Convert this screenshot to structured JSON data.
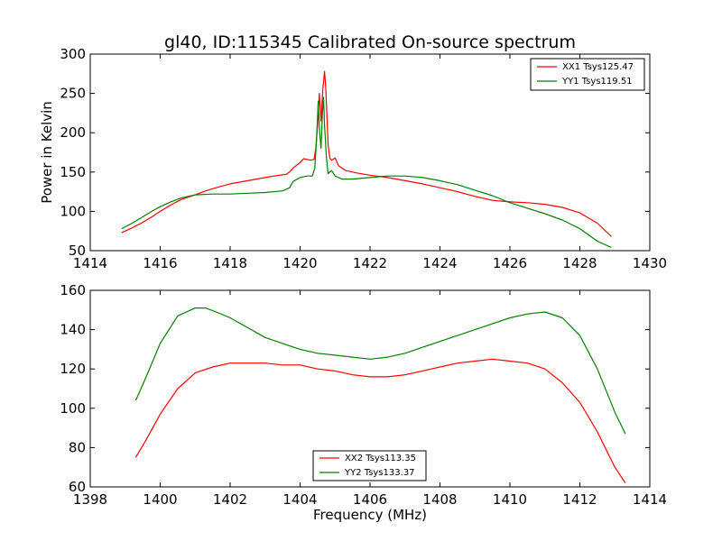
{
  "chart_data": [
    {
      "type": "line",
      "title": "gl40, ID:115345 Calibrated On-source spectrum",
      "xlabel": "",
      "ylabel": "Power in Kelvin",
      "xlim": [
        1414,
        1430
      ],
      "ylim": [
        50,
        300
      ],
      "xticks": [
        1414,
        1416,
        1418,
        1420,
        1422,
        1424,
        1426,
        1428,
        1430
      ],
      "yticks": [
        50,
        100,
        150,
        200,
        250,
        300
      ],
      "legend_position": "top-right",
      "series": [
        {
          "name": "XX1 Tsys125.47",
          "color": "#ff0000",
          "points": [
            [
              1414.9,
              73
            ],
            [
              1415.2,
              79
            ],
            [
              1415.5,
              86
            ],
            [
              1415.8,
              94
            ],
            [
              1416.0,
              100
            ],
            [
              1416.3,
              108
            ],
            [
              1416.6,
              115
            ],
            [
              1417.0,
              121
            ],
            [
              1417.3,
              126
            ],
            [
              1417.6,
              130
            ],
            [
              1418.0,
              135
            ],
            [
              1418.5,
              139
            ],
            [
              1419.0,
              143
            ],
            [
              1419.4,
              146
            ],
            [
              1419.6,
              147
            ],
            [
              1419.7,
              150
            ],
            [
              1419.8,
              155
            ],
            [
              1420.0,
              162
            ],
            [
              1420.1,
              167
            ],
            [
              1420.2,
              166
            ],
            [
              1420.3,
              165
            ],
            [
              1420.4,
              166
            ],
            [
              1420.45,
              180
            ],
            [
              1420.5,
              210
            ],
            [
              1420.55,
              250
            ],
            [
              1420.6,
              215
            ],
            [
              1420.65,
              255
            ],
            [
              1420.7,
              278
            ],
            [
              1420.73,
              260
            ],
            [
              1420.77,
              220
            ],
            [
              1420.8,
              185
            ],
            [
              1420.85,
              168
            ],
            [
              1420.9,
              165
            ],
            [
              1421.0,
              168
            ],
            [
              1421.1,
              158
            ],
            [
              1421.3,
              152
            ],
            [
              1421.6,
              149
            ],
            [
              1422.0,
              146
            ],
            [
              1422.5,
              143
            ],
            [
              1423.0,
              139
            ],
            [
              1423.5,
              135
            ],
            [
              1424.0,
              130
            ],
            [
              1424.5,
              125
            ],
            [
              1425.0,
              119
            ],
            [
              1425.5,
              114
            ],
            [
              1426.0,
              112
            ],
            [
              1426.5,
              111
            ],
            [
              1427.0,
              109
            ],
            [
              1427.5,
              105
            ],
            [
              1428.0,
              98
            ],
            [
              1428.5,
              85
            ],
            [
              1428.9,
              68
            ]
          ]
        },
        {
          "name": "YY1 Tsys119.51",
          "color": "#008000",
          "points": [
            [
              1414.9,
              78
            ],
            [
              1415.2,
              85
            ],
            [
              1415.5,
              93
            ],
            [
              1415.8,
              101
            ],
            [
              1416.0,
              106
            ],
            [
              1416.3,
              112
            ],
            [
              1416.6,
              117
            ],
            [
              1417.0,
              121
            ],
            [
              1417.5,
              122
            ],
            [
              1418.0,
              122
            ],
            [
              1418.5,
              123
            ],
            [
              1419.0,
              124
            ],
            [
              1419.5,
              126
            ],
            [
              1419.7,
              130
            ],
            [
              1419.8,
              138
            ],
            [
              1420.0,
              143
            ],
            [
              1420.2,
              145
            ],
            [
              1420.35,
              145
            ],
            [
              1420.42,
              155
            ],
            [
              1420.47,
              190
            ],
            [
              1420.52,
              240
            ],
            [
              1420.56,
              200
            ],
            [
              1420.6,
              180
            ],
            [
              1420.64,
              225
            ],
            [
              1420.67,
              245
            ],
            [
              1420.7,
              210
            ],
            [
              1420.75,
              170
            ],
            [
              1420.8,
              148
            ],
            [
              1420.9,
              152
            ],
            [
              1421.0,
              145
            ],
            [
              1421.2,
              141
            ],
            [
              1421.5,
              141
            ],
            [
              1422.0,
              143
            ],
            [
              1422.5,
              145
            ],
            [
              1423.0,
              145
            ],
            [
              1423.5,
              143
            ],
            [
              1424.0,
              139
            ],
            [
              1424.5,
              134
            ],
            [
              1425.0,
              127
            ],
            [
              1425.5,
              120
            ],
            [
              1426.0,
              111
            ],
            [
              1426.5,
              104
            ],
            [
              1427.0,
              97
            ],
            [
              1427.5,
              89
            ],
            [
              1428.0,
              78
            ],
            [
              1428.5,
              62
            ],
            [
              1428.9,
              54
            ]
          ]
        }
      ]
    },
    {
      "type": "line",
      "title": "",
      "xlabel": "Frequency (MHz)",
      "ylabel": "",
      "xlim": [
        1398,
        1414
      ],
      "ylim": [
        60,
        160
      ],
      "xticks": [
        1398,
        1400,
        1402,
        1404,
        1406,
        1408,
        1410,
        1412,
        1414
      ],
      "yticks": [
        60,
        80,
        100,
        120,
        140,
        160
      ],
      "legend_position": "bottom-center",
      "series": [
        {
          "name": "XX2 Tsys113.35",
          "color": "#ff0000",
          "points": [
            [
              1399.3,
              75
            ],
            [
              1399.6,
              84
            ],
            [
              1400.0,
              97
            ],
            [
              1400.5,
              110
            ],
            [
              1401.0,
              118
            ],
            [
              1401.5,
              121
            ],
            [
              1402.0,
              123
            ],
            [
              1402.5,
              123
            ],
            [
              1403.0,
              123
            ],
            [
              1403.5,
              122
            ],
            [
              1404.0,
              122
            ],
            [
              1404.5,
              120
            ],
            [
              1405.0,
              119
            ],
            [
              1405.5,
              117
            ],
            [
              1406.0,
              116
            ],
            [
              1406.5,
              116
            ],
            [
              1407.0,
              117
            ],
            [
              1407.5,
              119
            ],
            [
              1408.0,
              121
            ],
            [
              1408.5,
              123
            ],
            [
              1409.0,
              124
            ],
            [
              1409.5,
              125
            ],
            [
              1410.0,
              124
            ],
            [
              1410.5,
              123
            ],
            [
              1411.0,
              120
            ],
            [
              1411.5,
              113
            ],
            [
              1412.0,
              103
            ],
            [
              1412.5,
              88
            ],
            [
              1413.0,
              70
            ],
            [
              1413.3,
              62
            ]
          ]
        },
        {
          "name": "YY2 Tsys133.37",
          "color": "#008000",
          "points": [
            [
              1399.3,
              104
            ],
            [
              1399.6,
              116
            ],
            [
              1400.0,
              133
            ],
            [
              1400.5,
              147
            ],
            [
              1401.0,
              151
            ],
            [
              1401.3,
              151
            ],
            [
              1401.6,
              149
            ],
            [
              1402.0,
              146
            ],
            [
              1402.5,
              141
            ],
            [
              1403.0,
              136
            ],
            [
              1403.5,
              133
            ],
            [
              1404.0,
              130
            ],
            [
              1404.5,
              128
            ],
            [
              1405.0,
              127
            ],
            [
              1405.5,
              126
            ],
            [
              1406.0,
              125
            ],
            [
              1406.5,
              126
            ],
            [
              1407.0,
              128
            ],
            [
              1407.5,
              131
            ],
            [
              1408.0,
              134
            ],
            [
              1408.5,
              137
            ],
            [
              1409.0,
              140
            ],
            [
              1409.5,
              143
            ],
            [
              1410.0,
              146
            ],
            [
              1410.5,
              148
            ],
            [
              1411.0,
              149
            ],
            [
              1411.5,
              146
            ],
            [
              1412.0,
              137
            ],
            [
              1412.5,
              120
            ],
            [
              1413.0,
              98
            ],
            [
              1413.3,
              87
            ]
          ]
        }
      ]
    }
  ]
}
